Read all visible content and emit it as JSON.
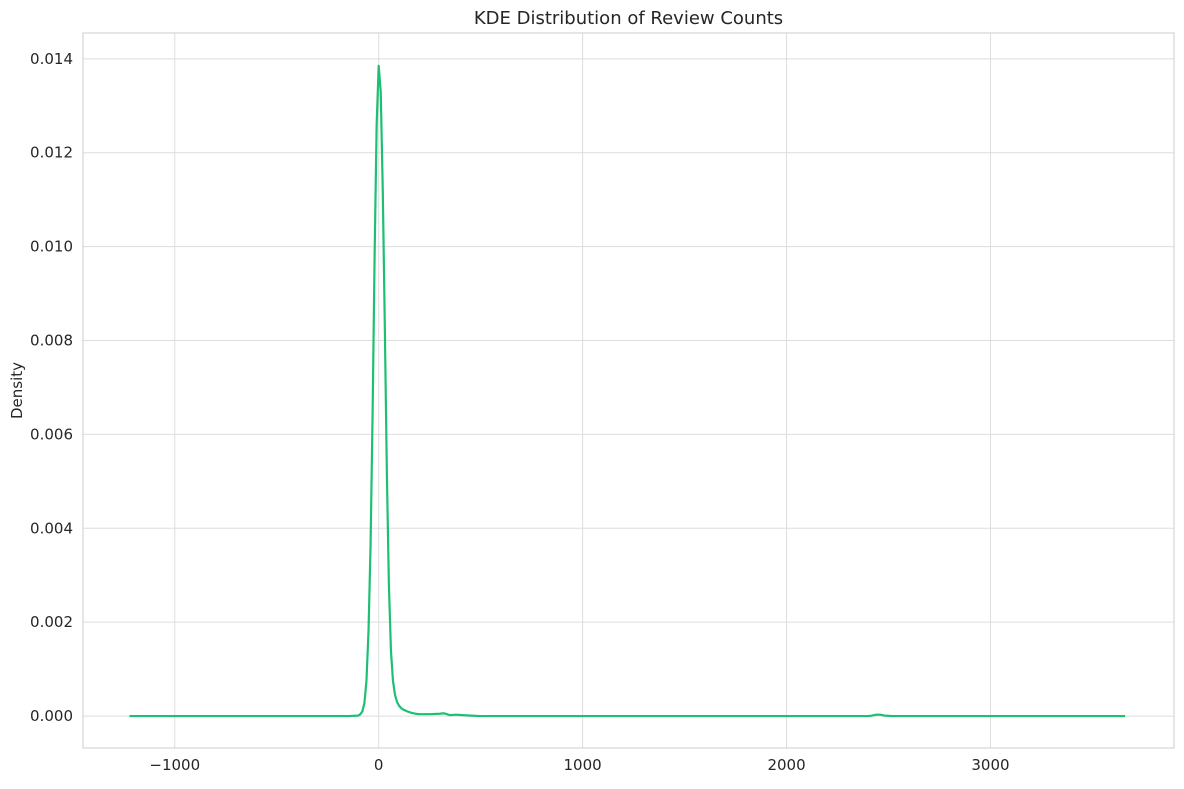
{
  "chart_data": {
    "type": "line",
    "title": "KDE Distribution of Review Counts",
    "xlabel": "",
    "ylabel": "Density",
    "xlim": [
      -1450,
      3900
    ],
    "ylim": [
      -0.00068,
      0.01455
    ],
    "xticks": [
      -1000,
      0,
      1000,
      2000,
      3000
    ],
    "xtick_labels": [
      "−1000",
      "0",
      "1000",
      "2000",
      "3000"
    ],
    "yticks": [
      0.0,
      0.002,
      0.004,
      0.006,
      0.008,
      0.01,
      0.012,
      0.014
    ],
    "ytick_labels": [
      "0.000",
      "0.002",
      "0.004",
      "0.006",
      "0.008",
      "0.010",
      "0.012",
      "0.014"
    ],
    "grid": true,
    "line_color": "#1dbf73",
    "series": [
      {
        "x": [
          -1222,
          -500,
          -150,
          -100,
          -90,
          -80,
          -70,
          -60,
          -50,
          -40,
          -30,
          -20,
          -10,
          0,
          10,
          20,
          30,
          40,
          50,
          60,
          70,
          80,
          90,
          100,
          110,
          120,
          140,
          160,
          180,
          200,
          250,
          300,
          320,
          350,
          380,
          410,
          450,
          500,
          700,
          1000,
          1500,
          2000,
          2400,
          2420,
          2440,
          2460,
          2480,
          2520,
          2600,
          3000,
          3660
        ],
        "y": [
          0.0,
          0.0,
          0.0,
          1e-05,
          4e-05,
          0.0001,
          0.00028,
          0.00075,
          0.0018,
          0.0036,
          0.0064,
          0.0098,
          0.0126,
          0.01385,
          0.0133,
          0.0112,
          0.0083,
          0.0052,
          0.0028,
          0.0014,
          0.00075,
          0.00045,
          0.0003,
          0.00022,
          0.00017,
          0.00014,
          0.0001,
          7e-05,
          5e-05,
          4e-05,
          4e-05,
          5e-05,
          6e-05,
          2e-05,
          3e-05,
          2e-05,
          1e-05,
          0.0,
          0.0,
          0.0,
          0.0,
          0.0,
          0.0,
          1e-05,
          3e-05,
          3e-05,
          1e-05,
          0.0,
          0.0,
          0.0,
          0.0
        ]
      }
    ]
  }
}
